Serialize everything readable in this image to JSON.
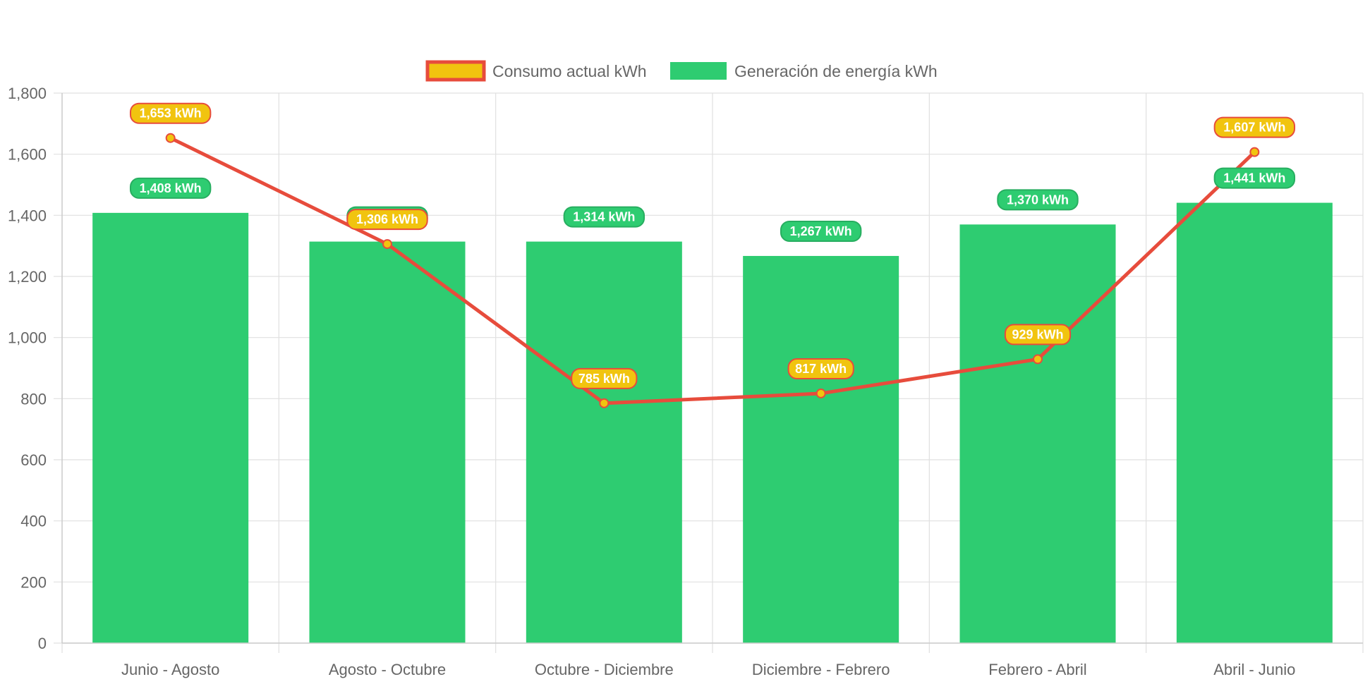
{
  "chart_data": {
    "type": "bar",
    "categories": [
      "Junio - Agosto",
      "Agosto - Octubre",
      "Octubre - Diciembre",
      "Diciembre - Febrero",
      "Febrero - Abril",
      "Abril - Junio"
    ],
    "series": [
      {
        "name": "Consumo actual kWh",
        "type": "line",
        "values": [
          1653,
          1306,
          785,
          817,
          929,
          1607
        ],
        "labels": [
          "1,653 kWh",
          "1,306 kWh",
          "785 kWh",
          "817 kWh",
          "929 kWh",
          "1,607 kWh"
        ],
        "line_color": "#e74c3c",
        "point_color": "#f1c40f",
        "label_color": "#f1c40f",
        "label_border": "#e74c3c"
      },
      {
        "name": "Generación de energía kWh",
        "type": "bar",
        "values": [
          1408,
          1314,
          1314,
          1267,
          1370,
          1441
        ],
        "labels": [
          "1,408 kWh",
          "1,314 kWh",
          "1,314 kWh",
          "1,267 kWh",
          "1,370 kWh",
          "1,441 kWh"
        ],
        "bar_color": "#2ecc71",
        "label_color": "#2ecc71",
        "label_border": "#27ae60"
      }
    ],
    "y_ticks": [
      "0",
      "200",
      "400",
      "600",
      "800",
      "1,000",
      "1,200",
      "1,400",
      "1,600",
      "1,800"
    ],
    "ylim": [
      0,
      1800
    ],
    "grid": true,
    "legend_position": "top-center",
    "title": "",
    "xlabel": "",
    "ylabel": ""
  }
}
